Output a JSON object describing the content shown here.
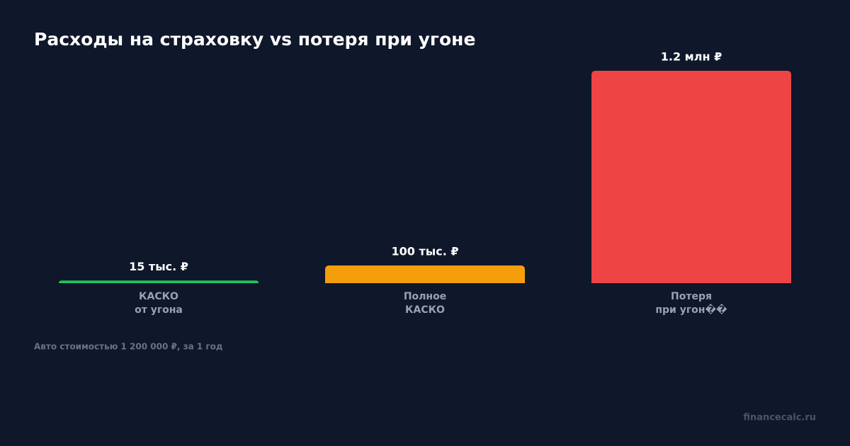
{
  "chart_data": {
    "type": "bar",
    "title": "Расходы на страховку vs потеря при угоне",
    "categories": [
      [
        "КАСКО",
        "от угона"
      ],
      [
        "Полное",
        "КАСКО"
      ],
      [
        "Потеря",
        "при угон��"
      ]
    ],
    "values": [
      15000,
      100000,
      1200000
    ],
    "value_labels": [
      "15 тыс. ₽",
      "100 тыс. ₽",
      "1.2 млн ₽"
    ],
    "colors": [
      "#22c55e",
      "#f59e0b",
      "#ef4444"
    ],
    "ylim": [
      0,
      1200000
    ],
    "note": "Авто стоимостью 1 200 000 ₽, за 1 год",
    "watermark": "financecalc.ru"
  }
}
